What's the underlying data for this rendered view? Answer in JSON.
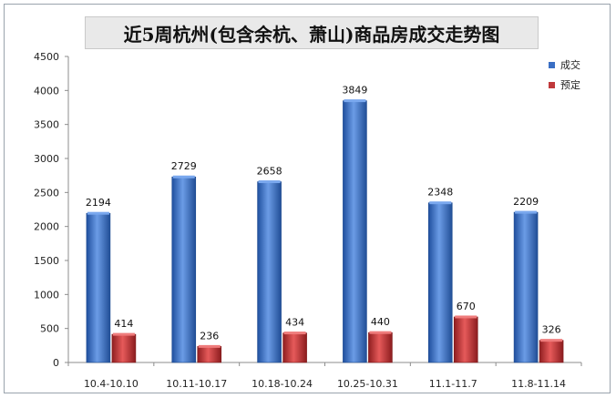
{
  "chart_data": {
    "type": "bar",
    "title": "近5周杭州(包含余杭、萧山)商品房成交走势图",
    "categories": [
      "10.4-10.10",
      "10.11-10.17",
      "10.18-10.24",
      "10.25-10.31",
      "11.1-11.7",
      "11.8-11.14"
    ],
    "series": [
      {
        "name": "成交",
        "color": "#3a6fc4",
        "values": [
          2194,
          2729,
          2658,
          3849,
          2348,
          2209
        ]
      },
      {
        "name": "预定",
        "color": "#c0393b",
        "values": [
          414,
          236,
          434,
          440,
          670,
          326
        ]
      }
    ],
    "ylim": [
      0,
      4500
    ],
    "yticks": [
      0,
      500,
      1000,
      1500,
      2000,
      2500,
      3000,
      3500,
      4000,
      4500
    ],
    "grid": false,
    "legend": "top-right",
    "data_labels": true
  }
}
